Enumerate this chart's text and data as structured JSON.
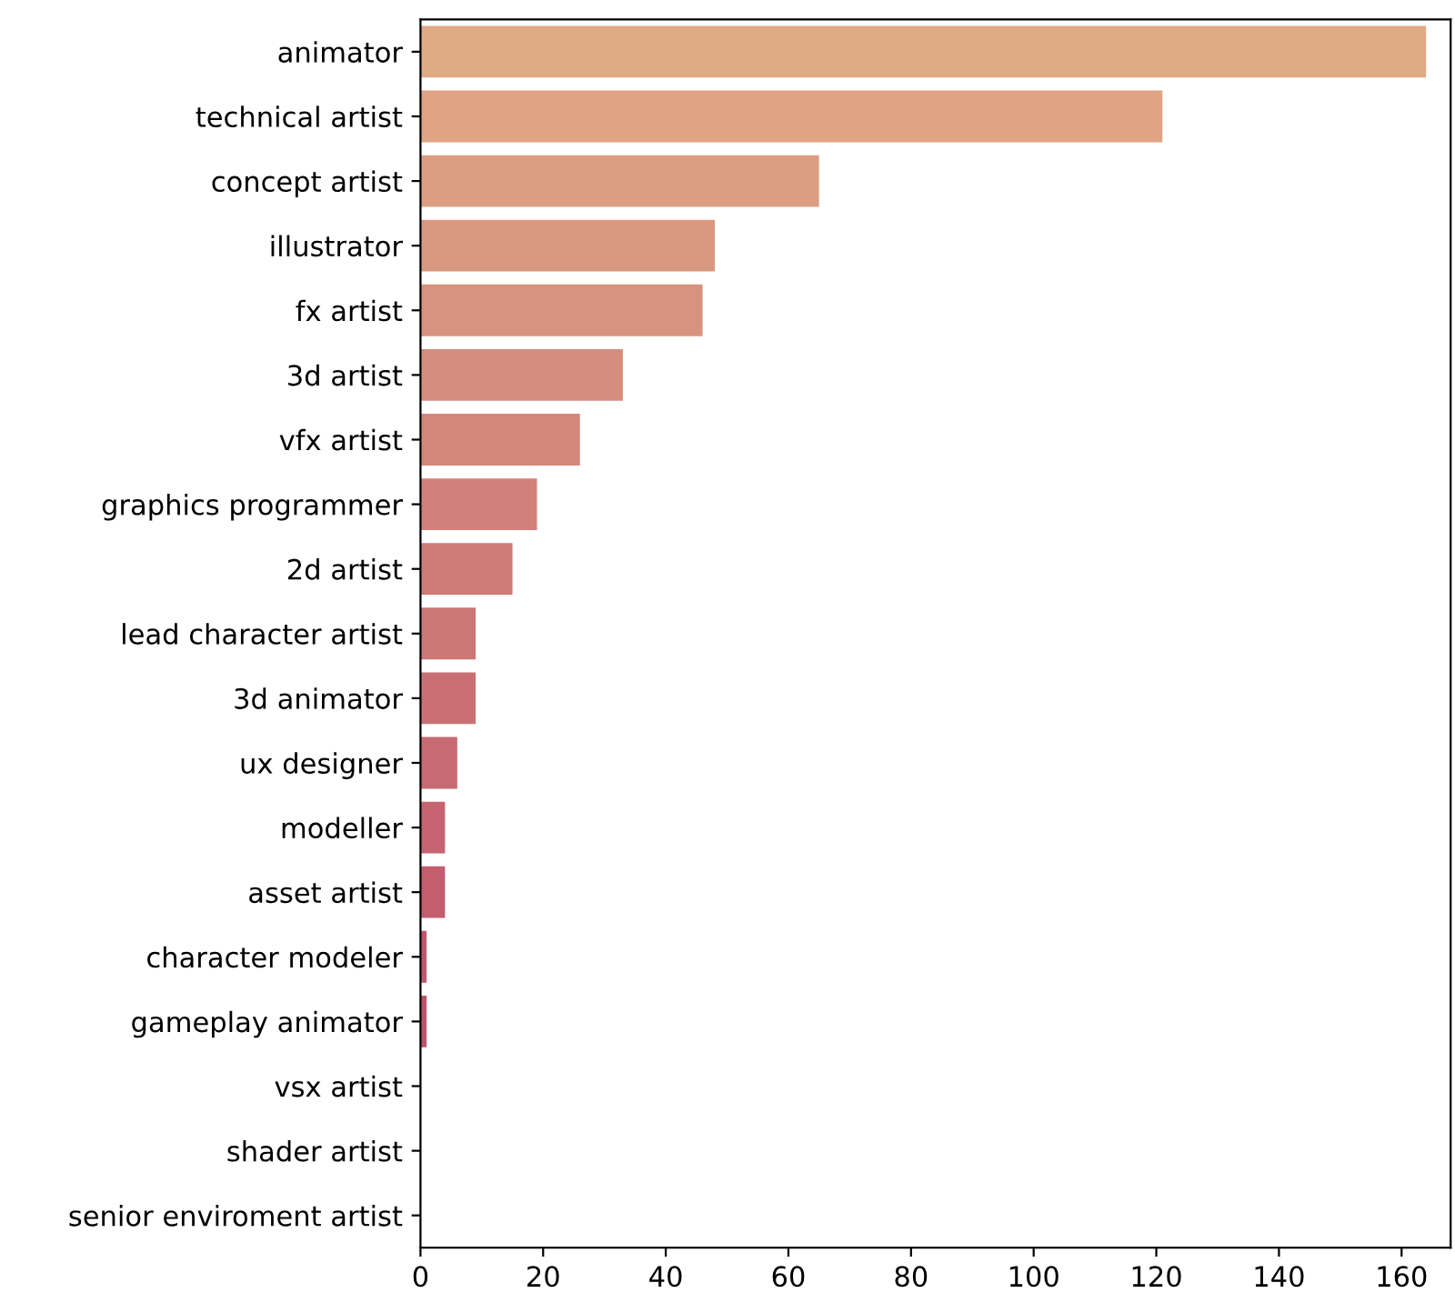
{
  "chart_data": {
    "type": "bar",
    "orientation": "horizontal",
    "categories": [
      "animator",
      "technical artist",
      "concept artist",
      "illustrator",
      "fx artist",
      "3d artist",
      "vfx artist",
      "graphics programmer",
      "2d artist",
      "lead character artist",
      "3d animator",
      "ux designer",
      "modeller",
      "asset artist",
      "character modeler",
      "gameplay animator",
      "vsx artist",
      "shader artist",
      "senior enviroment artist"
    ],
    "values": [
      164,
      121,
      65,
      48,
      46,
      33,
      26,
      19,
      15,
      9,
      9,
      6,
      4,
      4,
      1,
      1,
      0,
      0,
      0
    ],
    "colors": [
      "#e0aa86",
      "#dea484",
      "#dc9e82",
      "#d99981",
      "#d7937f",
      "#d58d7d",
      "#d3877b",
      "#d1817a",
      "#cf7b78",
      "#cc7676",
      "#ca7074",
      "#c86a72",
      "#c66471",
      "#c45e6f",
      "#c2586d",
      "#bf536b",
      "#bd4d69",
      "#bb4768",
      "#b94166"
    ],
    "xlim": [
      0,
      168
    ],
    "xticks": [
      0,
      20,
      40,
      60,
      80,
      100,
      120,
      140,
      160
    ],
    "grid": false
  }
}
